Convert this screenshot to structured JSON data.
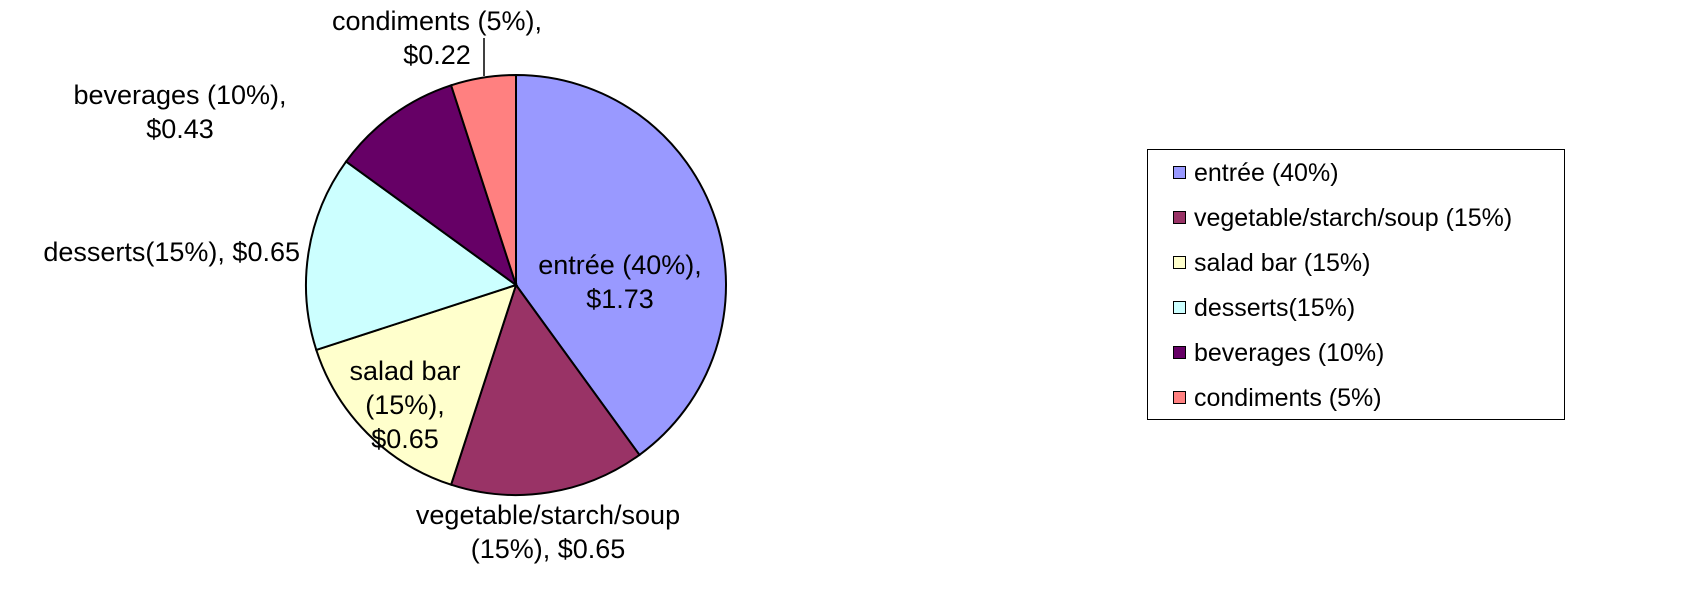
{
  "chart_data": {
    "type": "pie",
    "categories": [
      "entrée (40%)",
      "vegetable/starch/soup (15%)",
      "salad bar (15%)",
      "desserts(15%)",
      "beverages (10%)",
      "condiments (5%)"
    ],
    "values": [
      40,
      15,
      15,
      15,
      10,
      5
    ],
    "value_labels": [
      "entrée (40%),\n$1.73",
      "vegetable/starch/soup\n(15%),  $0.65",
      "salad bar\n(15%),\n$0.65",
      "desserts(15%),  $0.65",
      "beverages (10%),\n$0.43",
      "condiments (5%),\n$0.22"
    ],
    "colors": [
      "#9999ff",
      "#993366",
      "#ffffcc",
      "#ccffff",
      "#660066",
      "#ff8080"
    ],
    "legend": "right"
  }
}
